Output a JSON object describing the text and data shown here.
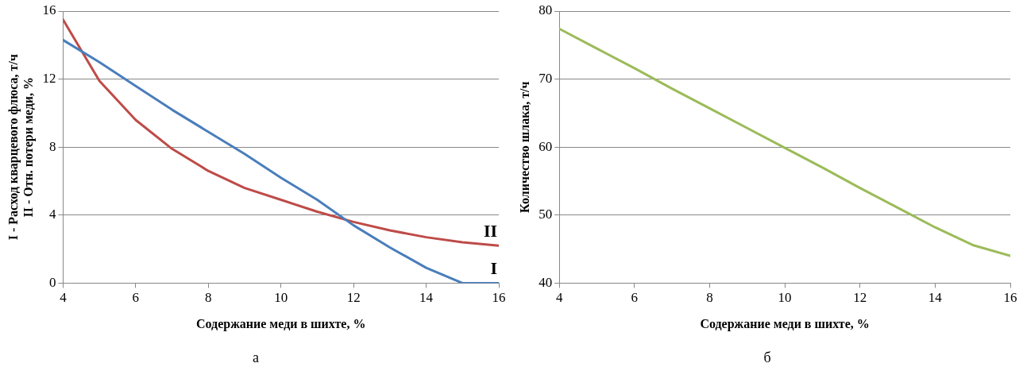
{
  "chart_data": [
    {
      "type": "line",
      "xlabel": "Содержание меди в шихте, %",
      "ylabel": "I - Расход кварцевого флюса, т/ч\nII - Отн. потери меди, %",
      "x": [
        4,
        5,
        6,
        7,
        8,
        9,
        10,
        11,
        12,
        13,
        14,
        15,
        16
      ],
      "series": [
        {
          "name": "I",
          "color": "#4a7ebb",
          "values": [
            14.3,
            13.0,
            11.6,
            10.2,
            8.9,
            7.6,
            6.2,
            4.9,
            3.4,
            2.1,
            0.9,
            0,
            0
          ]
        },
        {
          "name": "II",
          "color": "#be4b48",
          "values": [
            15.5,
            11.9,
            9.6,
            7.9,
            6.6,
            5.6,
            4.9,
            4.2,
            3.6,
            3.1,
            2.7,
            2.4,
            2.2
          ]
        }
      ],
      "xlim": [
        4,
        16
      ],
      "xticks": [
        4,
        6,
        8,
        10,
        12,
        14,
        16
      ],
      "ylim": [
        0,
        16
      ],
      "yticks": [
        0,
        4,
        8,
        12,
        16
      ],
      "grid": "y",
      "legend": false,
      "marker": "none",
      "line_style": "solid",
      "annotations": [
        "а"
      ]
    },
    {
      "type": "line",
      "xlabel": "Содержание меди в шихте, %",
      "ylabel": "Количество шлака, т/ч",
      "x": [
        4,
        5,
        6,
        7,
        8,
        9,
        10,
        11,
        12,
        13,
        14,
        15,
        16
      ],
      "series": [
        {
          "color": "#9bbb59",
          "values": [
            77.4,
            74.5,
            71.6,
            68.6,
            65.7,
            62.8,
            59.9,
            57.0,
            54.0,
            51.1,
            48.2,
            45.6,
            44.0
          ]
        }
      ],
      "xlim": [
        4,
        16
      ],
      "xticks": [
        4,
        6,
        8,
        10,
        12,
        14,
        16
      ],
      "ylim": [
        40,
        80
      ],
      "yticks": [
        40,
        50,
        60,
        70,
        80
      ],
      "grid": "y",
      "legend": false,
      "marker": "none",
      "line_style": "solid",
      "annotations": [
        "б"
      ]
    }
  ]
}
